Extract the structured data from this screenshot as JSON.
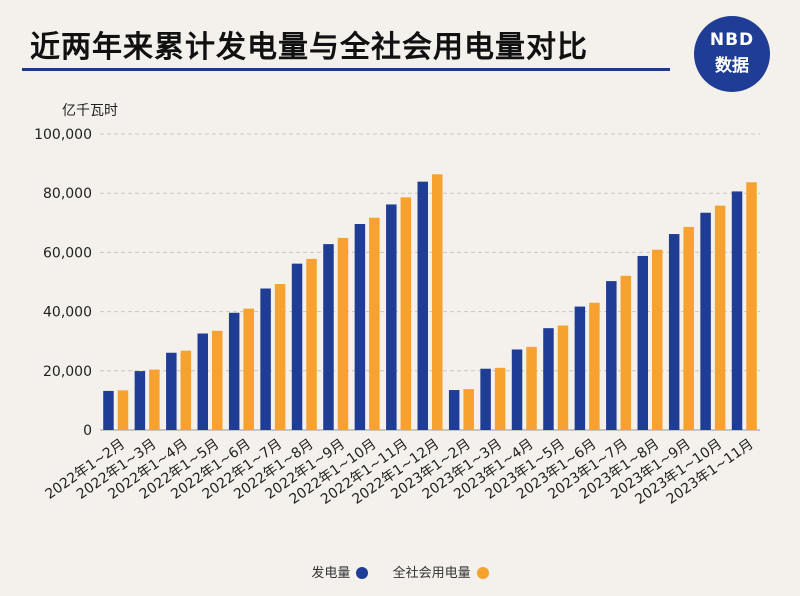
{
  "header": {
    "title": "近两年来累计发电量与全社会用电量对比",
    "logo_line1": "NBD",
    "logo_line2": "数据"
  },
  "chart_data": {
    "type": "bar",
    "title": "近两年来累计发电量与全社会用电量对比",
    "ylabel": "亿千瓦时",
    "xlabel": "",
    "ylim": [
      0,
      100000
    ],
    "yticks": [
      0,
      20000,
      40000,
      60000,
      80000,
      100000
    ],
    "ytick_labels": [
      "0",
      "20,000",
      "40,000",
      "60,000",
      "80,000",
      "100,000"
    ],
    "grid": true,
    "legend_position": "bottom",
    "categories": [
      "2022年1~2月",
      "2022年1~3月",
      "2022年1~4月",
      "2022年1~5月",
      "2022年1~6月",
      "2022年1~7月",
      "2022年1~8月",
      "2022年1~9月",
      "2022年1~10月",
      "2022年1~11月",
      "2022年1~12月",
      "2023年1~2月",
      "2023年1~3月",
      "2023年1~4月",
      "2023年1~5月",
      "2023年1~6月",
      "2023年1~7月",
      "2023年1~8月",
      "2023年1~9月",
      "2023年1~10月",
      "2023年1~11月"
    ],
    "series": [
      {
        "name": "发电量",
        "color": "#1f3d94",
        "values": [
          13200,
          19900,
          26100,
          32600,
          39600,
          47800,
          56200,
          62800,
          69600,
          76200,
          83900,
          13500,
          20700,
          27200,
          34400,
          41700,
          50300,
          58800,
          66200,
          73400,
          80600
        ]
      },
      {
        "name": "全社会用电量",
        "color": "#f7a12f",
        "values": [
          13400,
          20400,
          26800,
          33500,
          41000,
          49300,
          57800,
          64900,
          71700,
          78600,
          86400,
          13800,
          21000,
          28100,
          35300,
          43000,
          52100,
          60900,
          68600,
          75800,
          83700
        ]
      }
    ]
  }
}
